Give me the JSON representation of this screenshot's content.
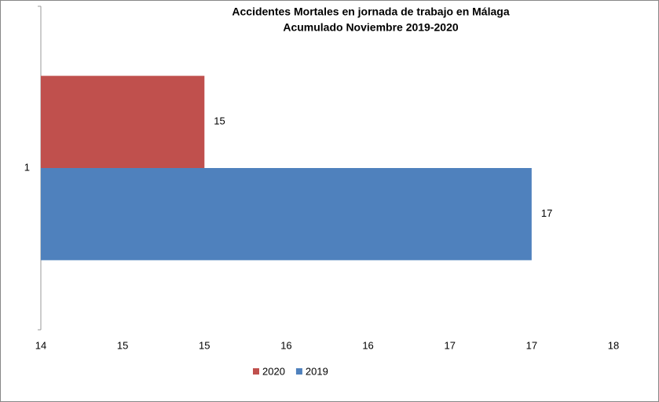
{
  "chart_data": {
    "type": "bar",
    "orientation": "horizontal",
    "title": [
      "Accidentes Mortales en jornada de trabajo en Málaga",
      "Acumulado Noviembre 2019-2020"
    ],
    "categories": [
      "1"
    ],
    "series": [
      {
        "name": "2020",
        "color": "#c0504d",
        "values": [
          15
        ]
      },
      {
        "name": "2019",
        "color": "#4f81bd",
        "values": [
          17
        ]
      }
    ],
    "xlim": [
      14,
      17.5
    ],
    "xticks": [
      14,
      {
        "value": 14.5,
        "label": "15"
      },
      15,
      {
        "value": 15.5,
        "label": "16"
      },
      16,
      {
        "value": 16.5,
        "label": "17"
      },
      17,
      {
        "value": 17.5,
        "label": "18"
      }
    ],
    "grid": false,
    "legend": "bottom"
  }
}
